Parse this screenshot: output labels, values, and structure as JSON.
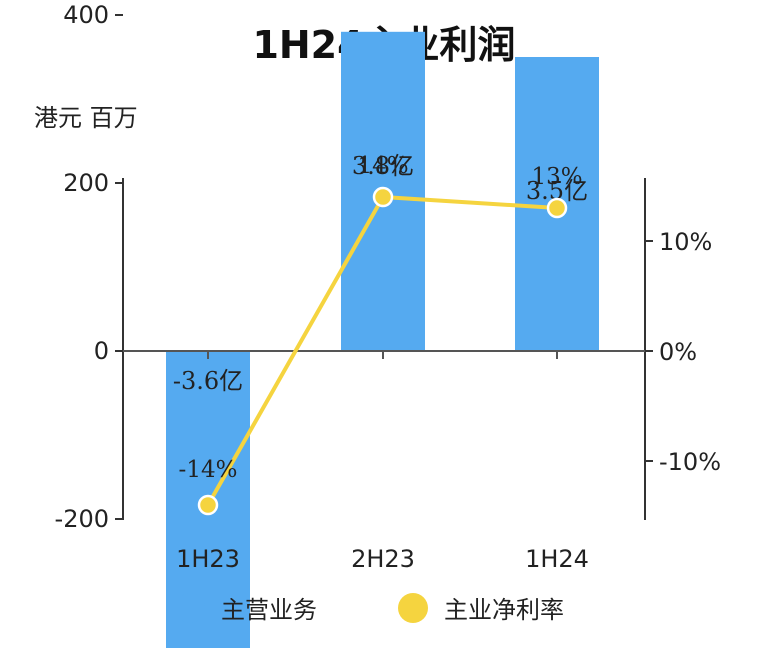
{
  "chart_data": {
    "type": "bar",
    "title": "1H24主业利润",
    "y_unit": "港元 百万",
    "categories": [
      "1H23",
      "2H23",
      "1H24"
    ],
    "series": [
      {
        "name": "主营业务",
        "type": "bar",
        "axis": "left",
        "values": [
          -360,
          380,
          350
        ],
        "labels": [
          "-3.6亿",
          "3.8亿",
          "3.5亿"
        ],
        "color": "#55aaf0"
      },
      {
        "name": "主业净利率",
        "type": "line",
        "axis": "right",
        "values": [
          -14,
          14,
          13
        ],
        "labels": [
          "-14%",
          "14%",
          "13%"
        ],
        "color": "#f5d43f"
      }
    ],
    "y_left": {
      "ticks": [
        400,
        200,
        0,
        -200
      ],
      "tick_labels": [
        "400",
        "200",
        "0",
        "-200"
      ],
      "range": [
        -400,
        400
      ]
    },
    "y_right": {
      "ticks": [
        10,
        0,
        -10
      ],
      "tick_labels": [
        "10%",
        "0%",
        "-10%"
      ],
      "range": [
        -15,
        15
      ]
    },
    "grid": false,
    "legend": "bottom-center"
  }
}
